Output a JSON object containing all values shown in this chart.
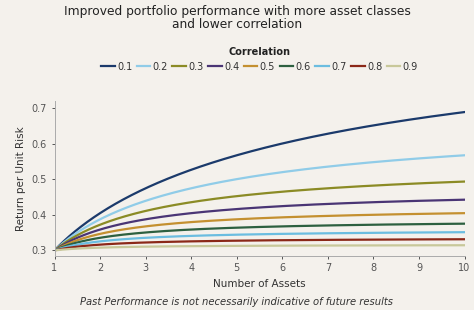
{
  "title_line1": "Improved portfolio performance with more asset classes",
  "title_line2": "and lower correlation",
  "xlabel": "Number of Assets",
  "ylabel": "Return per Unit Risk",
  "footnote": "Past Performance is not necessarily indicative of future results",
  "legend_title": "Correlation",
  "correlations": [
    0.1,
    0.2,
    0.3,
    0.4,
    0.5,
    0.6,
    0.7,
    0.8,
    0.9
  ],
  "colors": [
    "#1b3a6b",
    "#90cce8",
    "#8b8b25",
    "#4a3575",
    "#c49030",
    "#2d6040",
    "#6bbde0",
    "#8b2818",
    "#c8c89a"
  ],
  "n_assets_range": [
    1,
    10
  ],
  "ylim": [
    0.285,
    0.72
  ],
  "xlim": [
    1,
    10
  ],
  "background_color": "#f4f1ec",
  "linewidth": 1.6,
  "title_fontsize": 8.8,
  "axis_label_fontsize": 7.5,
  "tick_fontsize": 7.0,
  "legend_fontsize": 7.0,
  "footnote_fontsize": 7.2
}
